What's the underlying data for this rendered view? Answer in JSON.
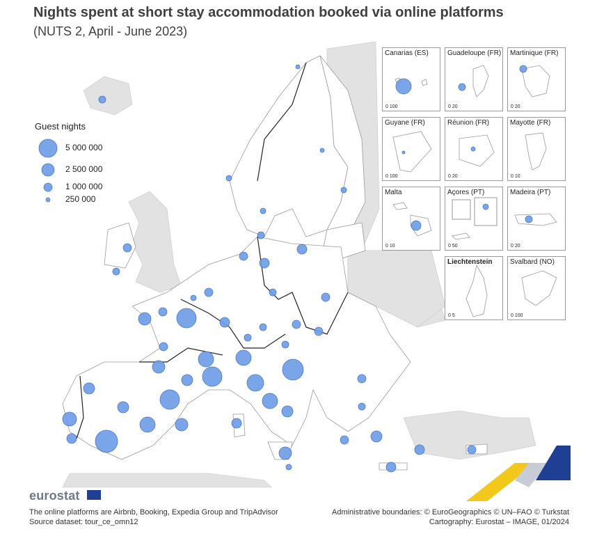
{
  "title": "Nights spent at short stay accommodation booked via online platforms",
  "subtitle": "(NUTS 2, April - June 2023)",
  "legend": {
    "title": "Guest nights",
    "items": [
      {
        "label": "5 000 000",
        "value": 5000000
      },
      {
        "label": "2 500 000",
        "value": 2500000
      },
      {
        "label": "1 000 000",
        "value": 1000000
      },
      {
        "label": "250 000",
        "value": 250000
      }
    ]
  },
  "insets": [
    {
      "name": "Canarias (ES)",
      "scale": "0    100"
    },
    {
      "name": "Guadeloupe (FR)",
      "scale": "0   20"
    },
    {
      "name": "Martinique (FR)",
      "scale": "0    20"
    },
    {
      "name": "Guyane (FR)",
      "scale": "0  100"
    },
    {
      "name": "Réunion (FR)",
      "scale": "0    20"
    },
    {
      "name": "Mayotte (FR)",
      "scale": "0    10"
    },
    {
      "name": "Malta",
      "scale": "0    10"
    },
    {
      "name": "Açores (PT)",
      "scale": "0    50"
    },
    {
      "name": "Madeira (PT)",
      "scale": "0    20"
    },
    {
      "name": "Liechtenstein",
      "scale": "0    5"
    },
    {
      "name": "Svalbard (NO)",
      "scale": "0  100"
    }
  ],
  "logo": "eurostat",
  "notes": {
    "platforms": "The online platforms are Airbnb, Booking, Expedia Group and TripAdvisor",
    "source": "Source dataset: tour_ce_omn12",
    "boundaries": "Administrative boundaries: © EuroGeographics © UN–FAO © Turkstat",
    "cartography": "Cartography: Eurostat – IMAGE, 01/2024"
  },
  "colors": {
    "bubble": "#6f9ee8",
    "land": "#ffffff",
    "nonEU": "#e2e2e2",
    "title": "#404040"
  }
}
